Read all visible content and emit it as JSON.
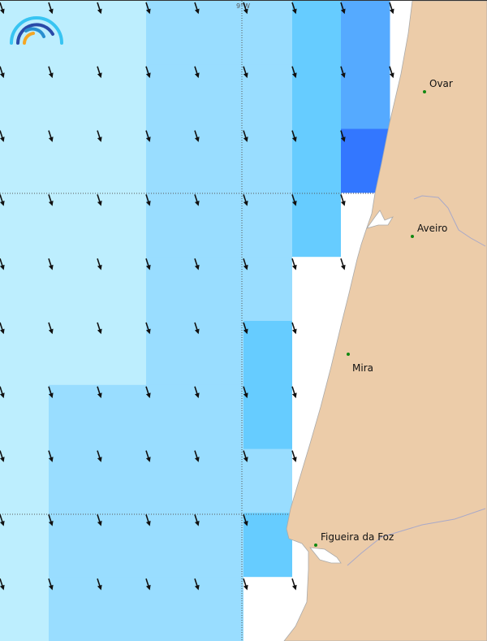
{
  "map": {
    "graticule_label": "9°W",
    "legend_levels": [
      "#ffffff",
      "#bdeefe",
      "#99ddff",
      "#66ccff",
      "#55aaff",
      "#3377ff"
    ],
    "cell_levels": [
      [
        1,
        1,
        1,
        2,
        2,
        2,
        3,
        4
      ],
      [
        1,
        1,
        1,
        2,
        2,
        2,
        3,
        4
      ],
      [
        1,
        1,
        1,
        2,
        2,
        2,
        3,
        5
      ],
      [
        1,
        1,
        1,
        2,
        2,
        2,
        3,
        0
      ],
      [
        1,
        1,
        1,
        2,
        2,
        2,
        0,
        0
      ],
      [
        1,
        1,
        1,
        2,
        2,
        3,
        0,
        0
      ],
      [
        1,
        2,
        2,
        2,
        2,
        3,
        0,
        0
      ],
      [
        1,
        2,
        2,
        2,
        2,
        2,
        0,
        0
      ],
      [
        1,
        2,
        2,
        2,
        2,
        3,
        0,
        0
      ],
      [
        1,
        2,
        2,
        2,
        2,
        0,
        0,
        0
      ]
    ],
    "arrow_direction": "south-southeast",
    "land_color": "#eccca9",
    "cities": [
      {
        "name": "Ovar"
      },
      {
        "name": "Aveiro"
      },
      {
        "name": "Mira"
      },
      {
        "name": "Figueira da Foz"
      }
    ]
  }
}
